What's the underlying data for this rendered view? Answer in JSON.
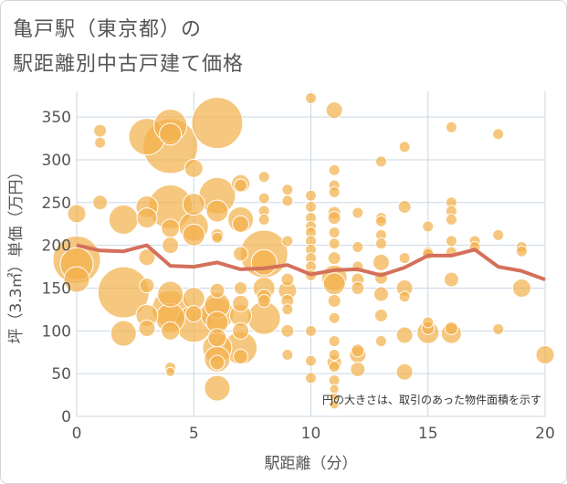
{
  "title": {
    "line1": "亀戸駅（東京都）の",
    "line2": "駅距離別中古戸建て価格"
  },
  "note": "円の大きさは、取引のあった物件面積を示す",
  "colors": {
    "bubble": "#f2b24c",
    "bubble_stroke": "#ffffff",
    "line": "#d4705a",
    "grid": "#c9d7e3",
    "plot_bg": "#ffffff",
    "text": "#555555"
  },
  "chart_data": {
    "type": "scatter",
    "title": "亀戸駅（東京都）の駅距離別中古戸建て価格",
    "xlabel": "駅距離（分）",
    "ylabel": "坪（3.3㎡）単価（万円）",
    "xlim": [
      0,
      20
    ],
    "ylim": [
      0,
      380
    ],
    "xticks": [
      0,
      5,
      10,
      15,
      20
    ],
    "yticks": [
      0,
      50,
      100,
      150,
      200,
      250,
      300,
      350
    ],
    "grid": true,
    "series": [
      {
        "type": "bubble",
        "points": [
          {
            "x": 0,
            "y": 237,
            "s": 10
          },
          {
            "x": 0,
            "y": 183,
            "s": 26
          },
          {
            "x": 0,
            "y": 178,
            "s": 18
          },
          {
            "x": 0,
            "y": 160,
            "s": 14
          },
          {
            "x": 1,
            "y": 334,
            "s": 7
          },
          {
            "x": 1,
            "y": 320,
            "s": 6
          },
          {
            "x": 1,
            "y": 250,
            "s": 8
          },
          {
            "x": 2,
            "y": 230,
            "s": 16
          },
          {
            "x": 2,
            "y": 145,
            "s": 28
          },
          {
            "x": 2,
            "y": 97,
            "s": 14
          },
          {
            "x": 3,
            "y": 327,
            "s": 20
          },
          {
            "x": 3,
            "y": 245,
            "s": 12
          },
          {
            "x": 3,
            "y": 232,
            "s": 11
          },
          {
            "x": 3,
            "y": 186,
            "s": 9
          },
          {
            "x": 3,
            "y": 153,
            "s": 8
          },
          {
            "x": 3,
            "y": 118,
            "s": 12
          },
          {
            "x": 3,
            "y": 103,
            "s": 9
          },
          {
            "x": 4,
            "y": 340,
            "s": 18
          },
          {
            "x": 4,
            "y": 330,
            "s": 12
          },
          {
            "x": 4,
            "y": 316,
            "s": 30
          },
          {
            "x": 4,
            "y": 245,
            "s": 24
          },
          {
            "x": 4,
            "y": 220,
            "s": 10
          },
          {
            "x": 4,
            "y": 200,
            "s": 9
          },
          {
            "x": 4,
            "y": 143,
            "s": 14
          },
          {
            "x": 4,
            "y": 126,
            "s": 20
          },
          {
            "x": 4,
            "y": 115,
            "s": 16
          },
          {
            "x": 4,
            "y": 100,
            "s": 10
          },
          {
            "x": 4,
            "y": 57,
            "s": 6
          },
          {
            "x": 4,
            "y": 52,
            "s": 5
          },
          {
            "x": 5,
            "y": 290,
            "s": 10
          },
          {
            "x": 5,
            "y": 248,
            "s": 12
          },
          {
            "x": 5,
            "y": 222,
            "s": 16
          },
          {
            "x": 5,
            "y": 212,
            "s": 12
          },
          {
            "x": 5,
            "y": 138,
            "s": 12
          },
          {
            "x": 5,
            "y": 120,
            "s": 9
          },
          {
            "x": 5,
            "y": 108,
            "s": 20
          },
          {
            "x": 6,
            "y": 343,
            "s": 28
          },
          {
            "x": 6,
            "y": 258,
            "s": 20
          },
          {
            "x": 6,
            "y": 240,
            "s": 12
          },
          {
            "x": 6,
            "y": 212,
            "s": 7
          },
          {
            "x": 6,
            "y": 209,
            "s": 6
          },
          {
            "x": 6,
            "y": 147,
            "s": 8
          },
          {
            "x": 6,
            "y": 130,
            "s": 14
          },
          {
            "x": 6,
            "y": 120,
            "s": 18
          },
          {
            "x": 6,
            "y": 110,
            "s": 12
          },
          {
            "x": 6,
            "y": 92,
            "s": 10
          },
          {
            "x": 6,
            "y": 80,
            "s": 16
          },
          {
            "x": 6,
            "y": 67,
            "s": 14
          },
          {
            "x": 6,
            "y": 63,
            "s": 8
          },
          {
            "x": 6,
            "y": 33,
            "s": 14
          },
          {
            "x": 7,
            "y": 272,
            "s": 10
          },
          {
            "x": 7,
            "y": 270,
            "s": 7
          },
          {
            "x": 7,
            "y": 230,
            "s": 14
          },
          {
            "x": 7,
            "y": 225,
            "s": 9
          },
          {
            "x": 7,
            "y": 190,
            "s": 8
          },
          {
            "x": 7,
            "y": 150,
            "s": 7
          },
          {
            "x": 7,
            "y": 132,
            "s": 9
          },
          {
            "x": 7,
            "y": 118,
            "s": 12
          },
          {
            "x": 7,
            "y": 100,
            "s": 9
          },
          {
            "x": 7,
            "y": 80,
            "s": 18
          },
          {
            "x": 7,
            "y": 70,
            "s": 8
          },
          {
            "x": 8,
            "y": 280,
            "s": 6
          },
          {
            "x": 8,
            "y": 255,
            "s": 6
          },
          {
            "x": 8,
            "y": 240,
            "s": 6
          },
          {
            "x": 8,
            "y": 230,
            "s": 6
          },
          {
            "x": 8,
            "y": 190,
            "s": 26
          },
          {
            "x": 8,
            "y": 180,
            "s": 14
          },
          {
            "x": 8,
            "y": 150,
            "s": 12
          },
          {
            "x": 8,
            "y": 140,
            "s": 8
          },
          {
            "x": 8,
            "y": 135,
            "s": 7
          },
          {
            "x": 8,
            "y": 115,
            "s": 18
          },
          {
            "x": 9,
            "y": 265,
            "s": 6
          },
          {
            "x": 9,
            "y": 252,
            "s": 6
          },
          {
            "x": 9,
            "y": 205,
            "s": 6
          },
          {
            "x": 9,
            "y": 160,
            "s": 7
          },
          {
            "x": 9,
            "y": 147,
            "s": 10
          },
          {
            "x": 9,
            "y": 135,
            "s": 7
          },
          {
            "x": 9,
            "y": 125,
            "s": 6
          },
          {
            "x": 9,
            "y": 100,
            "s": 7
          },
          {
            "x": 9,
            "y": 72,
            "s": 6
          },
          {
            "x": 10,
            "y": 372,
            "s": 6
          },
          {
            "x": 10,
            "y": 258,
            "s": 6
          },
          {
            "x": 10,
            "y": 245,
            "s": 6
          },
          {
            "x": 10,
            "y": 232,
            "s": 6
          },
          {
            "x": 10,
            "y": 222,
            "s": 6
          },
          {
            "x": 10,
            "y": 215,
            "s": 6
          },
          {
            "x": 10,
            "y": 205,
            "s": 6
          },
          {
            "x": 10,
            "y": 195,
            "s": 6
          },
          {
            "x": 10,
            "y": 185,
            "s": 6
          },
          {
            "x": 10,
            "y": 175,
            "s": 6
          },
          {
            "x": 10,
            "y": 165,
            "s": 6
          },
          {
            "x": 10,
            "y": 100,
            "s": 6
          },
          {
            "x": 10,
            "y": 65,
            "s": 6
          },
          {
            "x": 10,
            "y": 45,
            "s": 6
          },
          {
            "x": 11,
            "y": 358,
            "s": 9
          },
          {
            "x": 11,
            "y": 288,
            "s": 6
          },
          {
            "x": 11,
            "y": 270,
            "s": 6
          },
          {
            "x": 11,
            "y": 262,
            "s": 6
          },
          {
            "x": 11,
            "y": 238,
            "s": 7
          },
          {
            "x": 11,
            "y": 232,
            "s": 7
          },
          {
            "x": 11,
            "y": 215,
            "s": 6
          },
          {
            "x": 11,
            "y": 202,
            "s": 6
          },
          {
            "x": 11,
            "y": 185,
            "s": 7
          },
          {
            "x": 11,
            "y": 162,
            "s": 14
          },
          {
            "x": 11,
            "y": 155,
            "s": 12
          },
          {
            "x": 11,
            "y": 135,
            "s": 7
          },
          {
            "x": 11,
            "y": 115,
            "s": 6
          },
          {
            "x": 11,
            "y": 88,
            "s": 6
          },
          {
            "x": 11,
            "y": 72,
            "s": 6
          },
          {
            "x": 11,
            "y": 63,
            "s": 8
          },
          {
            "x": 11,
            "y": 58,
            "s": 6
          },
          {
            "x": 11,
            "y": 42,
            "s": 6
          },
          {
            "x": 11,
            "y": 32,
            "s": 5
          },
          {
            "x": 11,
            "y": 22,
            "s": 5
          },
          {
            "x": 11,
            "y": 14,
            "s": 5
          },
          {
            "x": 12,
            "y": 238,
            "s": 6
          },
          {
            "x": 12,
            "y": 198,
            "s": 6
          },
          {
            "x": 12,
            "y": 175,
            "s": 6
          },
          {
            "x": 12,
            "y": 160,
            "s": 7
          },
          {
            "x": 12,
            "y": 150,
            "s": 7
          },
          {
            "x": 12,
            "y": 77,
            "s": 7
          },
          {
            "x": 12,
            "y": 72,
            "s": 9
          },
          {
            "x": 12,
            "y": 55,
            "s": 8
          },
          {
            "x": 13,
            "y": 298,
            "s": 6
          },
          {
            "x": 13,
            "y": 232,
            "s": 6
          },
          {
            "x": 13,
            "y": 228,
            "s": 6
          },
          {
            "x": 13,
            "y": 212,
            "s": 6
          },
          {
            "x": 13,
            "y": 202,
            "s": 6
          },
          {
            "x": 13,
            "y": 180,
            "s": 9
          },
          {
            "x": 13,
            "y": 162,
            "s": 7
          },
          {
            "x": 13,
            "y": 143,
            "s": 8
          },
          {
            "x": 13,
            "y": 118,
            "s": 7
          },
          {
            "x": 13,
            "y": 88,
            "s": 6
          },
          {
            "x": 14,
            "y": 315,
            "s": 6
          },
          {
            "x": 14,
            "y": 245,
            "s": 7
          },
          {
            "x": 14,
            "y": 185,
            "s": 6
          },
          {
            "x": 14,
            "y": 150,
            "s": 9
          },
          {
            "x": 14,
            "y": 140,
            "s": 6
          },
          {
            "x": 14,
            "y": 95,
            "s": 9
          },
          {
            "x": 14,
            "y": 52,
            "s": 9
          },
          {
            "x": 15,
            "y": 222,
            "s": 6
          },
          {
            "x": 15,
            "y": 192,
            "s": 6
          },
          {
            "x": 15,
            "y": 190,
            "s": 6
          },
          {
            "x": 15,
            "y": 110,
            "s": 6
          },
          {
            "x": 15,
            "y": 103,
            "s": 7
          },
          {
            "x": 15,
            "y": 98,
            "s": 12
          },
          {
            "x": 16,
            "y": 338,
            "s": 6
          },
          {
            "x": 16,
            "y": 250,
            "s": 6
          },
          {
            "x": 16,
            "y": 240,
            "s": 6
          },
          {
            "x": 16,
            "y": 230,
            "s": 6
          },
          {
            "x": 16,
            "y": 205,
            "s": 6
          },
          {
            "x": 16,
            "y": 192,
            "s": 6
          },
          {
            "x": 16,
            "y": 160,
            "s": 8
          },
          {
            "x": 16,
            "y": 103,
            "s": 7
          },
          {
            "x": 16,
            "y": 97,
            "s": 11
          },
          {
            "x": 17,
            "y": 205,
            "s": 6
          },
          {
            "x": 17,
            "y": 198,
            "s": 6
          },
          {
            "x": 18,
            "y": 330,
            "s": 6
          },
          {
            "x": 18,
            "y": 212,
            "s": 6
          },
          {
            "x": 18,
            "y": 102,
            "s": 6
          },
          {
            "x": 19,
            "y": 198,
            "s": 6
          },
          {
            "x": 19,
            "y": 193,
            "s": 6
          },
          {
            "x": 19,
            "y": 150,
            "s": 10
          },
          {
            "x": 20,
            "y": 72,
            "s": 10
          }
        ]
      },
      {
        "type": "line",
        "x": [
          0,
          1,
          2,
          3,
          4,
          5,
          6,
          7,
          8,
          9,
          10,
          11,
          12,
          13,
          14,
          15,
          16,
          17,
          18,
          19,
          20
        ],
        "values": [
          200,
          194,
          193,
          200,
          176,
          175,
          180,
          172,
          173,
          177,
          166,
          171,
          172,
          165,
          174,
          188,
          188,
          195,
          175,
          170,
          160
        ]
      }
    ]
  }
}
